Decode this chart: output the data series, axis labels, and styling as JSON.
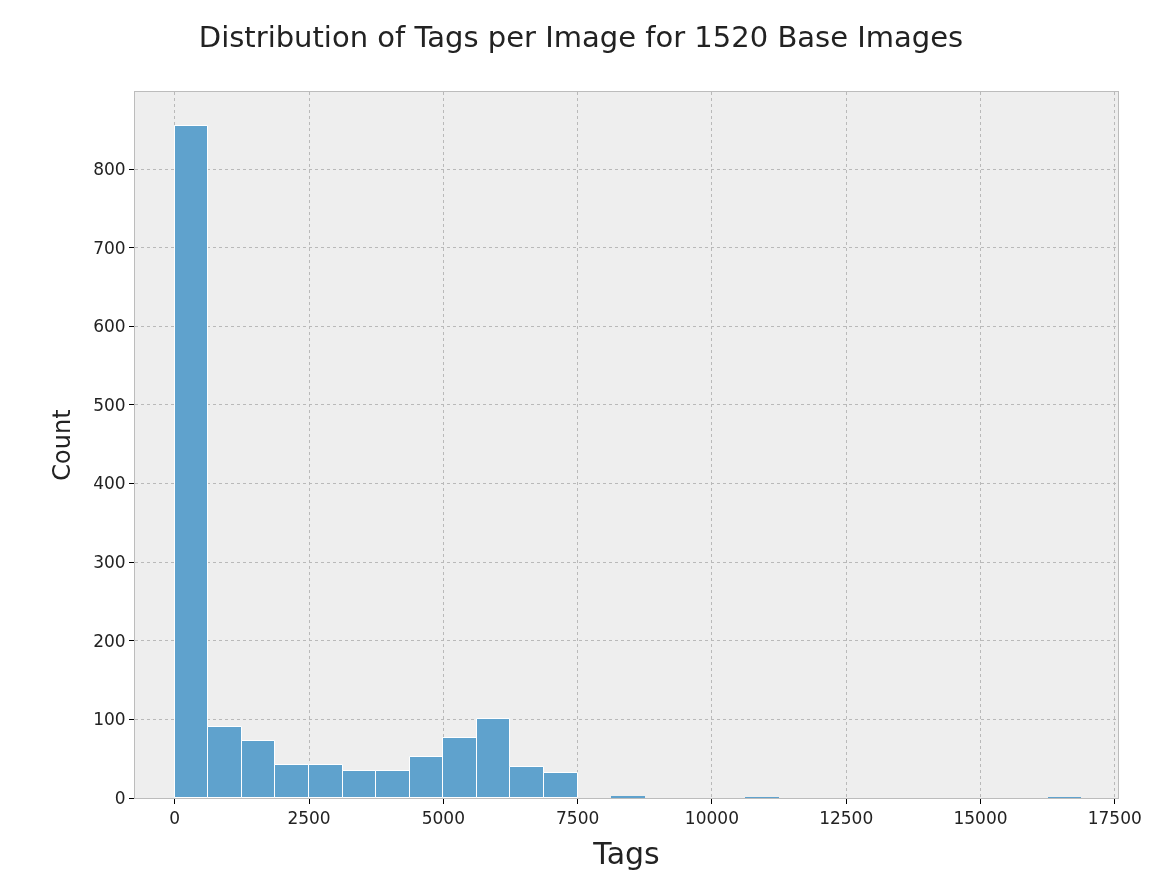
{
  "chart_data": {
    "type": "histogram",
    "title": "Distribution of Tags per Image for 1520 Base Images",
    "xlabel": "Tags",
    "ylabel": "Count",
    "color": "#5fa2cd",
    "bins": [
      0,
      625,
      1250,
      1875,
      2500,
      3125,
      3750,
      4375,
      5000,
      5625,
      6250,
      6875,
      7500,
      8125,
      8750,
      9375,
      10000,
      10625,
      11250,
      11875,
      12500,
      13125,
      13750,
      14375,
      15000,
      15625,
      16250,
      16875
    ],
    "values": [
      855,
      90,
      72,
      42,
      42,
      34,
      34,
      52,
      76,
      100,
      40,
      32,
      0,
      3,
      0,
      0,
      0,
      1,
      0,
      0,
      0,
      0,
      0,
      0,
      0,
      0,
      1
    ],
    "xlim": [
      -740,
      17560
    ],
    "ylim": [
      0,
      898
    ],
    "xticks": [
      0,
      2500,
      5000,
      7500,
      10000,
      12500,
      15000,
      17500
    ],
    "yticks": [
      0,
      100,
      200,
      300,
      400,
      500,
      600,
      700,
      800
    ],
    "grid": true
  }
}
